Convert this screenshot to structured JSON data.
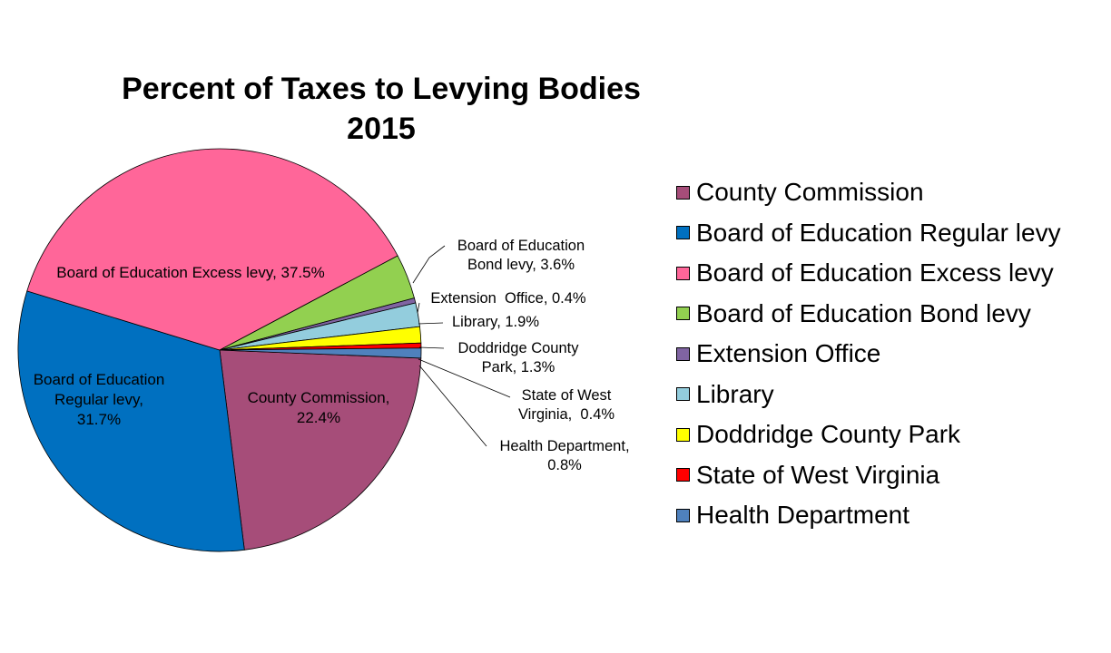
{
  "chart_data": {
    "type": "pie",
    "title_line1": "Percent of Taxes to Levying Bodies",
    "title_line2": "2015",
    "slices": [
      {
        "name": "County Commission",
        "value": 22.4,
        "color": "#A64D79",
        "label": [
          "County Commission,",
          "22.4%"
        ]
      },
      {
        "name": "Board of Education Regular levy",
        "value": 31.7,
        "color": "#0070C0",
        "label": [
          "Board of Education",
          "Regular levy,",
          "31.7%"
        ]
      },
      {
        "name": "Board of Education Excess levy",
        "value": 37.5,
        "color": "#FF6699",
        "label": [
          "Board of Education Excess levy, 37.5%"
        ]
      },
      {
        "name": "Board of Education Bond levy",
        "value": 3.6,
        "color": "#92D050",
        "label": [
          "Board of Education",
          "Bond levy, 3.6%"
        ]
      },
      {
        "name": "Extension Office",
        "value": 0.4,
        "color": "#8064A2",
        "label": [
          "Extension  Office, 0.4%"
        ]
      },
      {
        "name": "Library",
        "value": 1.9,
        "color": "#93CDDD",
        "label": [
          "Library, 1.9%"
        ]
      },
      {
        "name": "Doddridge County Park",
        "value": 1.3,
        "color": "#FFFF00",
        "label": [
          "Doddridge County",
          "Park, 1.3%"
        ]
      },
      {
        "name": "State of West Virginia",
        "value": 0.4,
        "color": "#FF0000",
        "label": [
          "State of West",
          "Virginia,  0.4%"
        ]
      },
      {
        "name": "Health Department",
        "value": 0.8,
        "color": "#4F81BD",
        "label": [
          "Health Department,",
          "0.8%"
        ]
      }
    ],
    "legend_position": "right"
  }
}
